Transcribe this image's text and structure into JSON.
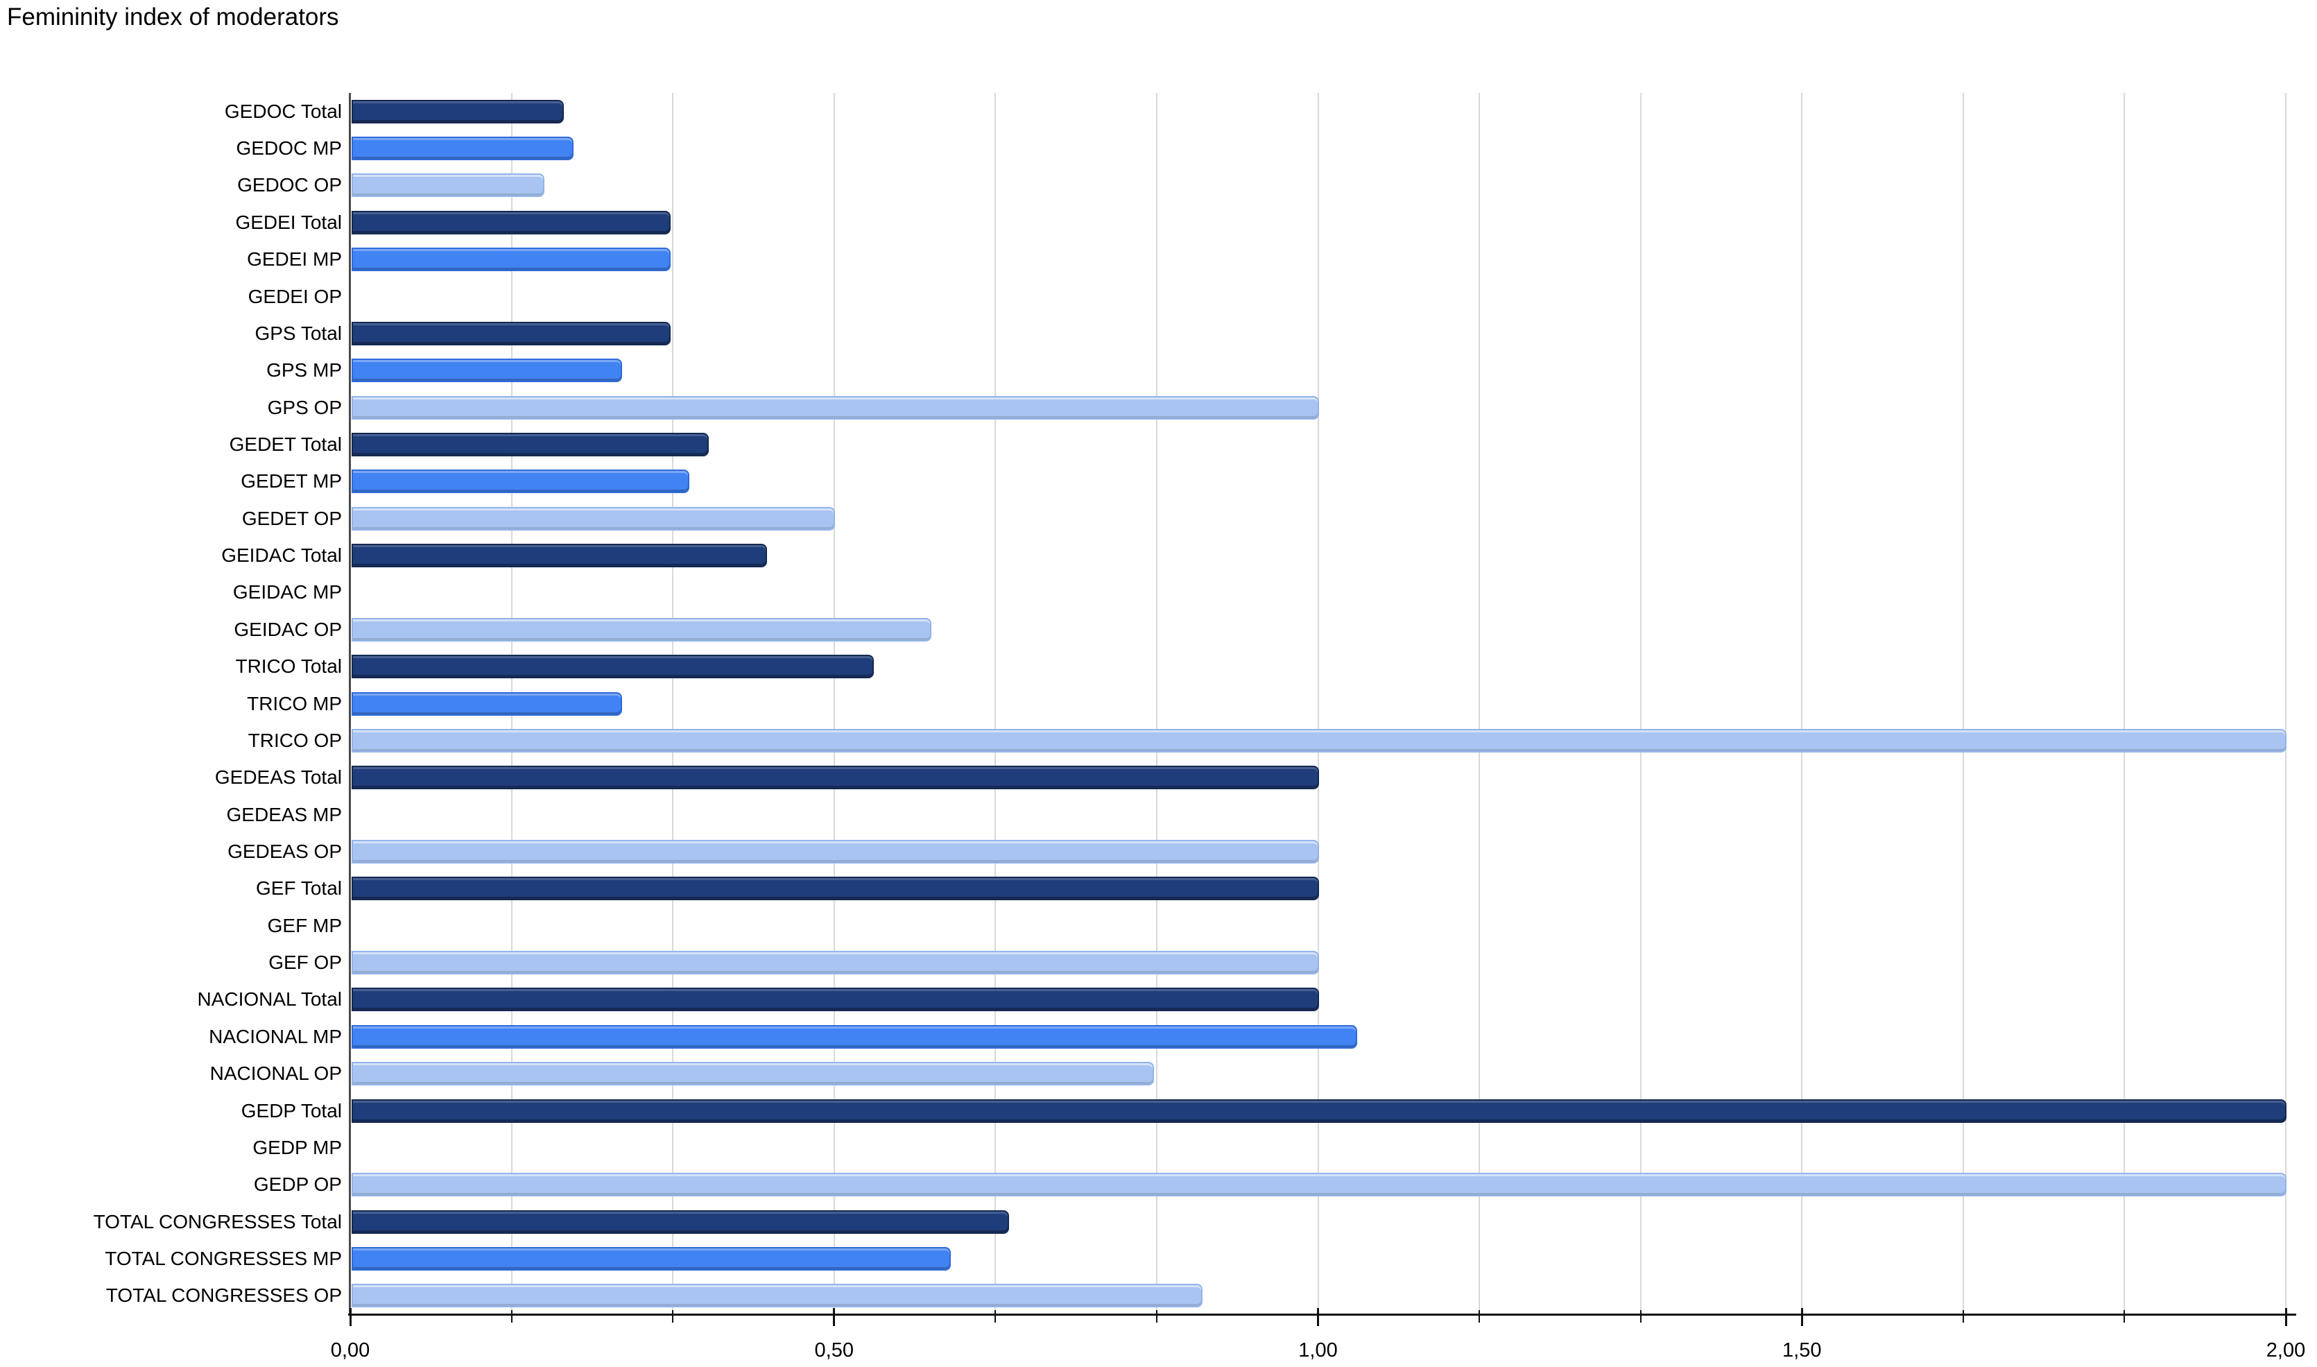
{
  "chart_data": {
    "type": "bar",
    "orientation": "horizontal",
    "title": "Femininity index of moderators",
    "xlabel": "",
    "ylabel": "",
    "xlim": [
      0,
      2
    ],
    "grid": "vertical",
    "legend": "none",
    "x_minor_tick_interval": 0.1666667,
    "x_major_ticks": [
      {
        "value": 0.0,
        "label": "0,00"
      },
      {
        "value": 0.5,
        "label": "0,50"
      },
      {
        "value": 1.0,
        "label": "1,00"
      },
      {
        "value": 1.5,
        "label": "1,50"
      },
      {
        "value": 2.0,
        "label": "2,00"
      }
    ],
    "rows": [
      {
        "category": "GEDOC Total",
        "series": "total",
        "value": 0.22
      },
      {
        "category": "GEDOC MP",
        "series": "mp",
        "value": 0.23
      },
      {
        "category": "GEDOC OP",
        "series": "op",
        "value": 0.2
      },
      {
        "category": "GEDEI Total",
        "series": "total",
        "value": 0.33
      },
      {
        "category": "GEDEI MP",
        "series": "mp",
        "value": 0.33
      },
      {
        "category": "GEDEI OP",
        "series": "op",
        "value": 0.0
      },
      {
        "category": "GPS Total",
        "series": "total",
        "value": 0.33
      },
      {
        "category": "GPS MP",
        "series": "mp",
        "value": 0.28
      },
      {
        "category": "GPS OP",
        "series": "op",
        "value": 1.0
      },
      {
        "category": "GEDET Total",
        "series": "total",
        "value": 0.37
      },
      {
        "category": "GEDET MP",
        "series": "mp",
        "value": 0.35
      },
      {
        "category": "GEDET OP",
        "series": "op",
        "value": 0.5
      },
      {
        "category": "GEIDAC Total",
        "series": "total",
        "value": 0.43
      },
      {
        "category": "GEIDAC MP",
        "series": "mp",
        "value": 0.0
      },
      {
        "category": "GEIDAC OP",
        "series": "op",
        "value": 0.6
      },
      {
        "category": "TRICO Total",
        "series": "total",
        "value": 0.54
      },
      {
        "category": "TRICO MP",
        "series": "mp",
        "value": 0.28
      },
      {
        "category": "TRICO OP",
        "series": "op",
        "value": 2.0
      },
      {
        "category": "GEDEAS Total",
        "series": "total",
        "value": 1.0
      },
      {
        "category": "GEDEAS MP",
        "series": "mp",
        "value": 0.0
      },
      {
        "category": "GEDEAS OP",
        "series": "op",
        "value": 1.0
      },
      {
        "category": "GEF Total",
        "series": "total",
        "value": 1.0
      },
      {
        "category": "GEF MP",
        "series": "mp",
        "value": 0.0
      },
      {
        "category": "GEF OP",
        "series": "op",
        "value": 1.0
      },
      {
        "category": "NACIONAL Total",
        "series": "total",
        "value": 1.0
      },
      {
        "category": "NACIONAL MP",
        "series": "mp",
        "value": 1.04
      },
      {
        "category": "NACIONAL OP",
        "series": "op",
        "value": 0.83
      },
      {
        "category": "GEDP Total",
        "series": "total",
        "value": 2.0
      },
      {
        "category": "GEDP MP",
        "series": "mp",
        "value": 0.0
      },
      {
        "category": "GEDP OP",
        "series": "op",
        "value": 2.0
      },
      {
        "category": "TOTAL CONGRESSES Total",
        "series": "total",
        "value": 0.68
      },
      {
        "category": "TOTAL CONGRESSES MP",
        "series": "mp",
        "value": 0.62
      },
      {
        "category": "TOTAL CONGRESSES OP",
        "series": "op",
        "value": 0.88
      }
    ],
    "series_colors": {
      "total": {
        "fill": "#1f3d7a",
        "border": "#15294f"
      },
      "mp": {
        "fill": "#4183f3",
        "border": "#2f6bd9"
      },
      "op": {
        "fill": "#a9c4f0",
        "border": "#93b4ea"
      }
    },
    "gridline_color": "#d9d9d9",
    "y_axis_color": "#4a4a4a",
    "x_axis_color": "#111111",
    "background_color": "#ffffff"
  }
}
